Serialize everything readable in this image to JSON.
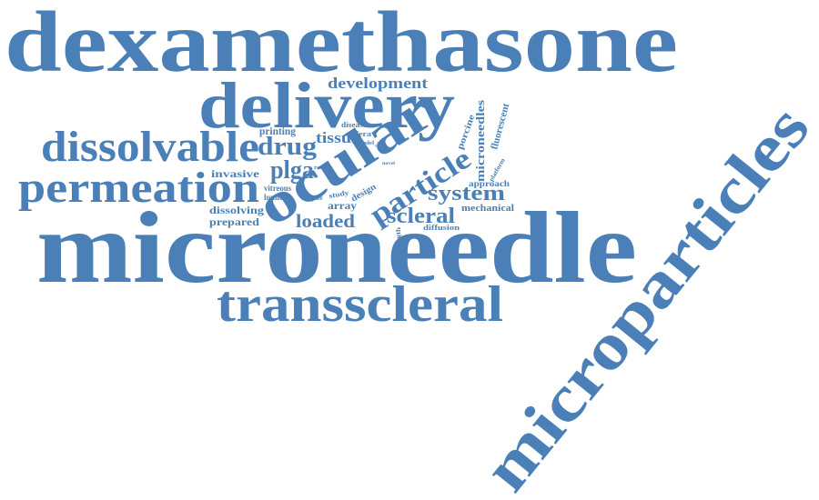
{
  "words": [
    "dexamethasone",
    "microneedle",
    "microparticles",
    "delivery",
    "transscleral",
    "ocular",
    "dissolvable",
    "permeation",
    "particle",
    "drug",
    "plga",
    "system",
    "scleral",
    "loaded",
    "development",
    "tissue",
    "printing",
    "invasive",
    "dissolving",
    "prepared",
    "array",
    "design",
    "vitreous",
    "humour",
    "higher",
    "study",
    "microneedles",
    "fluorescent",
    "porcine",
    "approach",
    "mechanical",
    "diffusion",
    "strength",
    "disease",
    "sclera",
    "model",
    "rabbit",
    "range",
    "novel",
    "platform"
  ]
}
